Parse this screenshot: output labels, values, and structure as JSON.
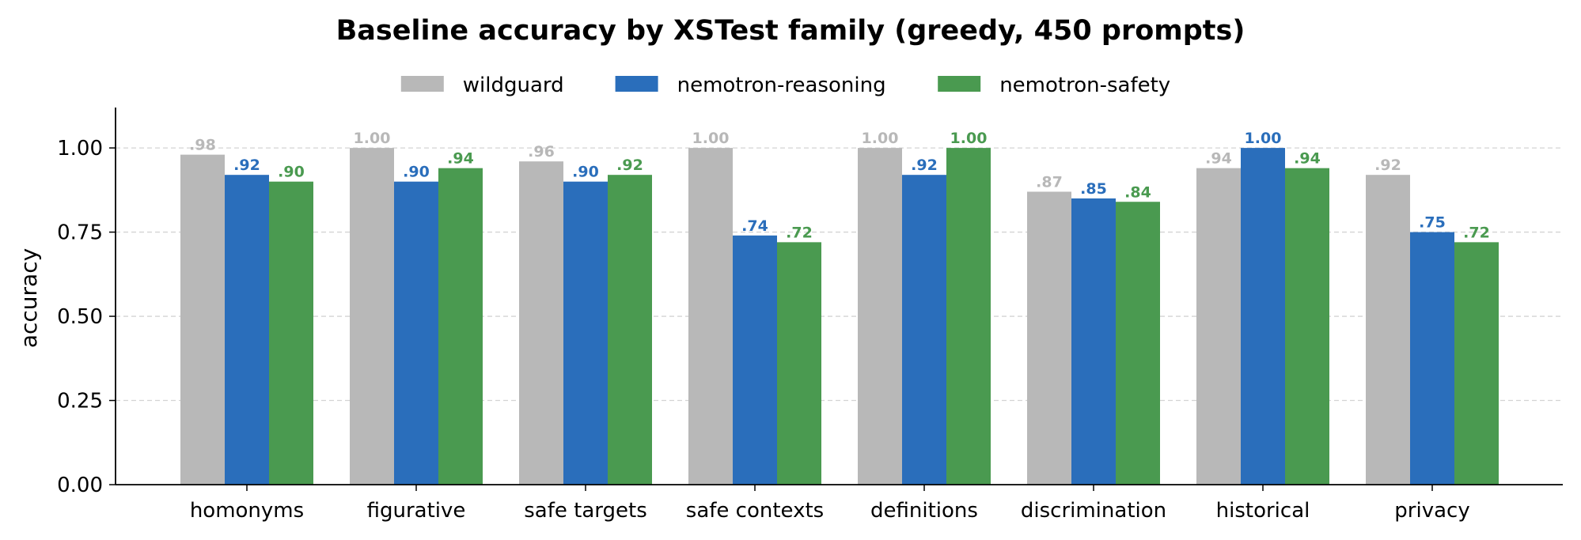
{
  "chart_data": {
    "type": "bar",
    "title": "Baseline accuracy by XSTest family (greedy, 450 prompts)",
    "xlabel": "",
    "ylabel": "accuracy",
    "ylim": [
      0,
      1.12
    ],
    "yticks": [
      0.0,
      0.25,
      0.5,
      0.75,
      1.0
    ],
    "ytick_labels": [
      "0.00",
      "0.25",
      "0.50",
      "0.75",
      "1.00"
    ],
    "grid": "y-dashed",
    "legend_position": "top-center",
    "categories": [
      "homonyms",
      "figurative",
      "safe targets",
      "safe contexts",
      "definitions",
      "discrimination",
      "historical",
      "privacy"
    ],
    "series": [
      {
        "name": "wildguard",
        "color": "#b8b8b8",
        "values": [
          0.98,
          1.0,
          0.96,
          1.0,
          1.0,
          0.87,
          0.94,
          0.92
        ],
        "labels": [
          ".98",
          "1.00",
          ".96",
          "1.00",
          "1.00",
          ".87",
          ".94",
          ".92"
        ]
      },
      {
        "name": "nemotron-reasoning",
        "color": "#2a6ebb",
        "values": [
          0.92,
          0.9,
          0.9,
          0.74,
          0.92,
          0.85,
          1.0,
          0.75
        ],
        "labels": [
          ".92",
          ".90",
          ".90",
          ".74",
          ".92",
          ".85",
          "1.00",
          ".75"
        ]
      },
      {
        "name": "nemotron-safety",
        "color": "#4a9a50",
        "values": [
          0.9,
          0.94,
          0.92,
          0.72,
          1.0,
          0.84,
          0.94,
          0.72
        ],
        "labels": [
          ".90",
          ".94",
          ".92",
          ".72",
          "1.00",
          ".84",
          ".94",
          ".72"
        ]
      }
    ]
  }
}
